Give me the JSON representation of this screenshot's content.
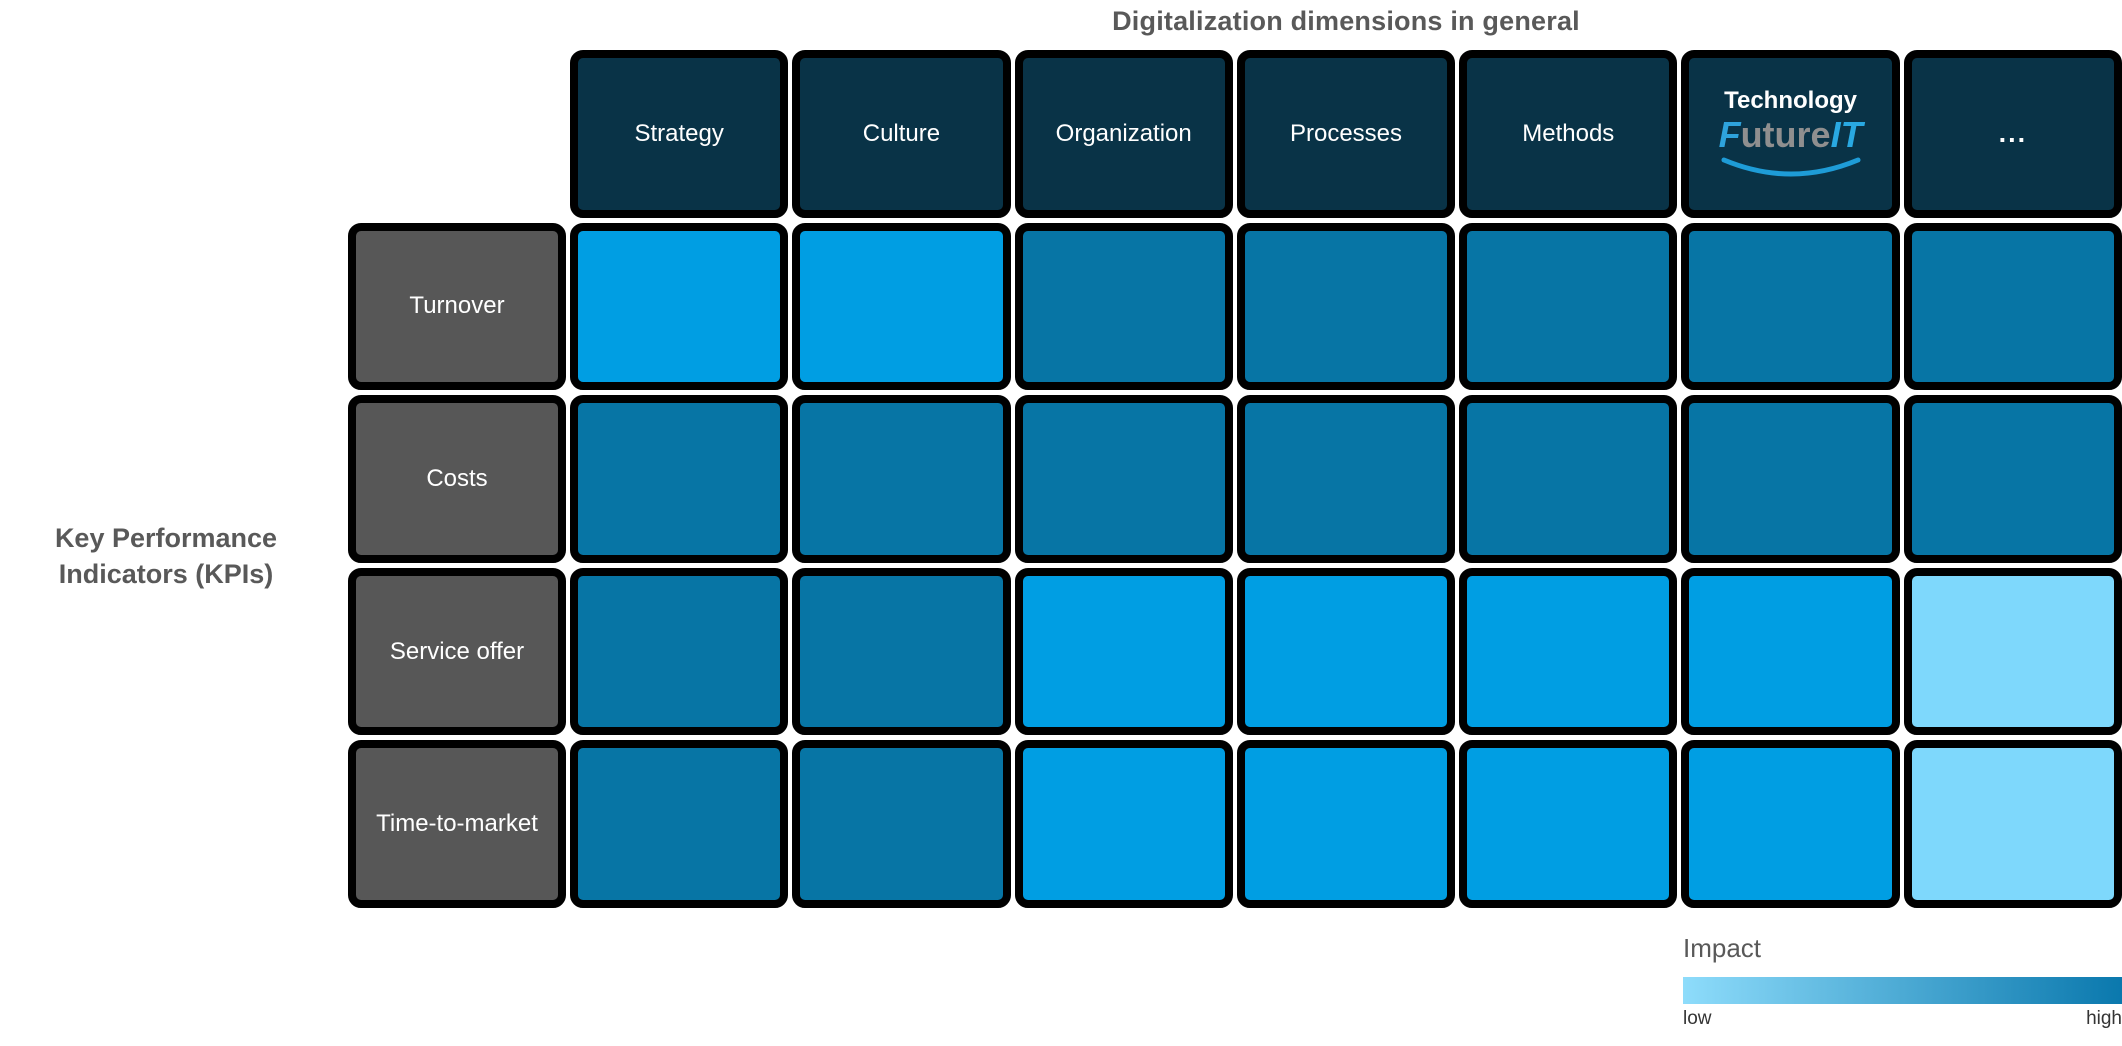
{
  "title": "Digitalization dimensions in general",
  "row_axis_label": "Key Performance\nIndicators (KPIs)",
  "columns": [
    "Strategy",
    "Culture",
    "Organization",
    "Processes",
    "Methods",
    "Technology",
    "..."
  ],
  "rows": [
    "Turnover",
    "Costs",
    "Service offer",
    "Time-to-market"
  ],
  "technology_logo": {
    "column": "Technology",
    "line1": "Technology",
    "f_italic": "F",
    "middle": "uture",
    "it_italic": "IT"
  },
  "legend": {
    "title": "Impact",
    "low_label": "low",
    "high_label": "high"
  },
  "colors": {
    "title_text": "#595959",
    "cell_border": "#000000",
    "column_header_bg": "#093347",
    "row_header_bg": "#575757",
    "impact_high": "#0775a5",
    "impact_medium": "#009ee3",
    "impact_low": "#7ed8fc",
    "legend_gradient_start": "#8edcfb",
    "legend_gradient_end": "#0a78ad",
    "logo_f_blue": "#2ea3dc",
    "logo_gray": "#8f8f8f",
    "logo_it_blue": "#29a9e2",
    "logo_swoosh_blue": "#1e9cd7"
  },
  "chart_data": {
    "type": "heatmap",
    "title": "Digitalization dimensions in general",
    "x_axis_label": "Digitalization dimensions in general",
    "y_axis_label": "Key Performance Indicators (KPIs)",
    "x_categories": [
      "Strategy",
      "Culture",
      "Organization",
      "Processes",
      "Methods",
      "Technology (FutureIT)",
      "..."
    ],
    "y_categories": [
      "Turnover",
      "Costs",
      "Service offer",
      "Time-to-market"
    ],
    "values": [
      [
        "medium",
        "medium",
        "high",
        "high",
        "high",
        "high",
        "high"
      ],
      [
        "high",
        "high",
        "high",
        "high",
        "high",
        "high",
        "high"
      ],
      [
        "high",
        "high",
        "medium",
        "medium",
        "medium",
        "medium",
        "low"
      ],
      [
        "high",
        "high",
        "medium",
        "medium",
        "medium",
        "medium",
        "low"
      ]
    ],
    "value_scale": [
      "low",
      "medium",
      "high"
    ],
    "color_map": {
      "low": "#7ed8fc",
      "medium": "#009ee3",
      "high": "#0775a5"
    },
    "legend": {
      "label": "Impact",
      "min_label": "low",
      "max_label": "high",
      "orientation": "horizontal",
      "position": "bottom-right"
    }
  }
}
